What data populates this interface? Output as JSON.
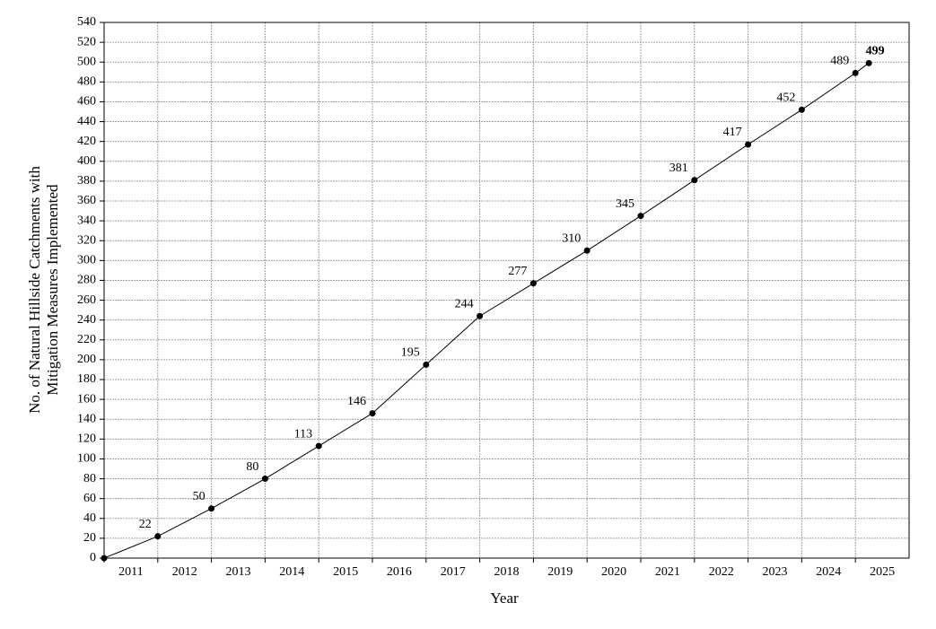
{
  "chart_data": {
    "type": "line",
    "x": [
      2011,
      2012,
      2013,
      2014,
      2015,
      2016,
      2017,
      2018,
      2019,
      2020,
      2021,
      2022,
      2023,
      2024,
      2025,
      2025.25
    ],
    "values": [
      0,
      22,
      50,
      80,
      113,
      146,
      195,
      244,
      277,
      310,
      345,
      381,
      417,
      452,
      489,
      499
    ],
    "color": "#000000",
    "xlabel": "Year",
    "ylabel": [
      "No. of Natural Hillside Catchments  with",
      "Mitigation Measures Implemented"
    ],
    "xlim": [
      2011,
      2026
    ],
    "xticks": [
      {
        "value": 2011.5,
        "label": "2011"
      },
      {
        "value": 2012.5,
        "label": "2012"
      },
      {
        "value": 2013.5,
        "label": "2013"
      },
      {
        "value": 2014.5,
        "label": "2014"
      },
      {
        "value": 2015.5,
        "label": "2015"
      },
      {
        "value": 2016.5,
        "label": "2016"
      },
      {
        "value": 2017.5,
        "label": "2017"
      },
      {
        "value": 2018.5,
        "label": "2018"
      },
      {
        "value": 2019.5,
        "label": "2019"
      },
      {
        "value": 2020.5,
        "label": "2020"
      },
      {
        "value": 2021.5,
        "label": "2021"
      },
      {
        "value": 2022.5,
        "label": "2022"
      },
      {
        "value": 2023.5,
        "label": "2023"
      },
      {
        "value": 2024.5,
        "label": "2024"
      },
      {
        "value": 2025.5,
        "label": "2025"
      }
    ],
    "ylim": [
      0,
      540
    ],
    "yticks": [
      0,
      20,
      40,
      60,
      80,
      100,
      120,
      140,
      160,
      180,
      200,
      220,
      240,
      260,
      280,
      300,
      320,
      340,
      360,
      380,
      400,
      420,
      440,
      460,
      480,
      500,
      520,
      540
    ],
    "grid": true
  }
}
